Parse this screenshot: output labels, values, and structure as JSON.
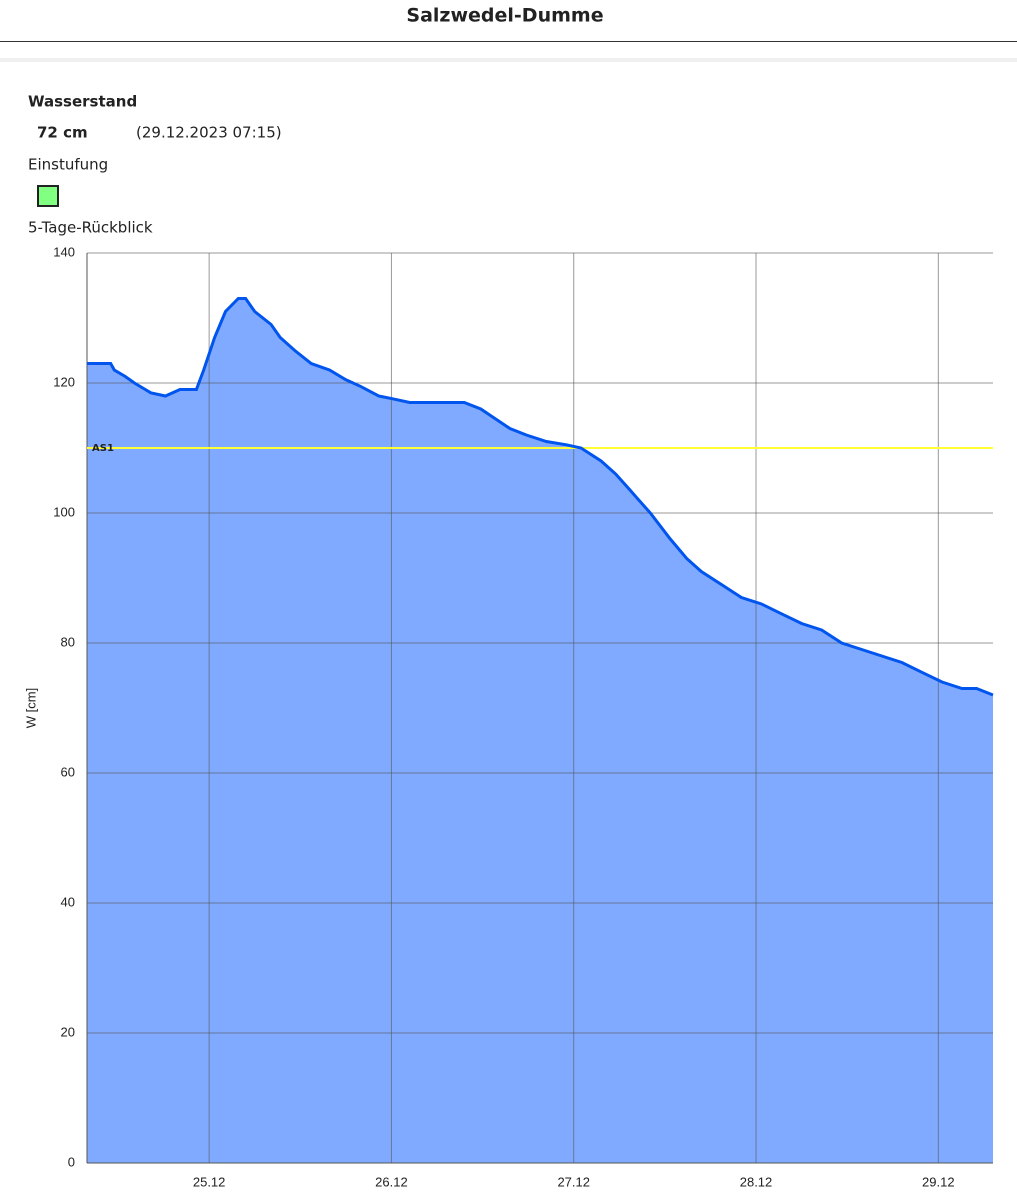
{
  "header": {
    "title": "Salzwedel-Dumme"
  },
  "info": {
    "level_label": "Wasserstand",
    "level_value": "72 cm",
    "timestamp": "(29.12.2023 07:15)",
    "classification_label": "Einstufung",
    "classification_color": "#80ff80",
    "review_label": "5-Tage-Rückblick"
  },
  "chart_data": {
    "type": "area",
    "y_label": "W [cm]",
    "x": [
      24.33,
      24.46,
      24.48,
      24.54,
      24.59,
      24.65,
      24.68,
      24.76,
      24.84,
      24.93,
      24.97,
      25.03,
      25.09,
      25.16,
      25.2,
      25.25,
      25.34,
      25.39,
      25.47,
      25.56,
      25.66,
      25.75,
      25.83,
      25.93,
      26.02,
      26.1,
      26.4,
      26.49,
      26.57,
      26.65,
      26.74,
      26.85,
      26.96,
      27.04,
      27.15,
      27.23,
      27.31,
      27.42,
      27.53,
      27.62,
      27.7,
      27.81,
      27.92,
      28.03,
      28.14,
      28.25,
      28.36,
      28.47,
      28.58,
      28.69,
      28.8,
      28.91,
      29.02,
      29.13,
      29.21,
      29.3
    ],
    "values": [
      123,
      123,
      122,
      121,
      120,
      119,
      118.5,
      118,
      119,
      119,
      122,
      127,
      131,
      133,
      133,
      131,
      129,
      127,
      125,
      123,
      122,
      120.5,
      119.5,
      118,
      117.5,
      117,
      117,
      116,
      114.5,
      113,
      112,
      111,
      110.5,
      110,
      108,
      106,
      103.5,
      100,
      96,
      93,
      91,
      89,
      87,
      86,
      84.5,
      83,
      82,
      80,
      79,
      78,
      77,
      75.5,
      74,
      73,
      73,
      72
    ],
    "color": "#0055ee",
    "fill_color": "#80aaff",
    "xlim": [
      24.33,
      29.3
    ],
    "xticks": [
      {
        "value": 25,
        "label": "25.12"
      },
      {
        "value": 26,
        "label": "26.12"
      },
      {
        "value": 27,
        "label": "27.12"
      },
      {
        "value": 28,
        "label": "28.12"
      },
      {
        "value": 29,
        "label": "29.12"
      }
    ],
    "ylim": [
      0,
      140
    ],
    "yticks": [
      0,
      20,
      40,
      60,
      80,
      100,
      120,
      140
    ],
    "grid": true,
    "threshold": {
      "label": "AS1",
      "value": 110,
      "color": "#ffff33"
    }
  }
}
